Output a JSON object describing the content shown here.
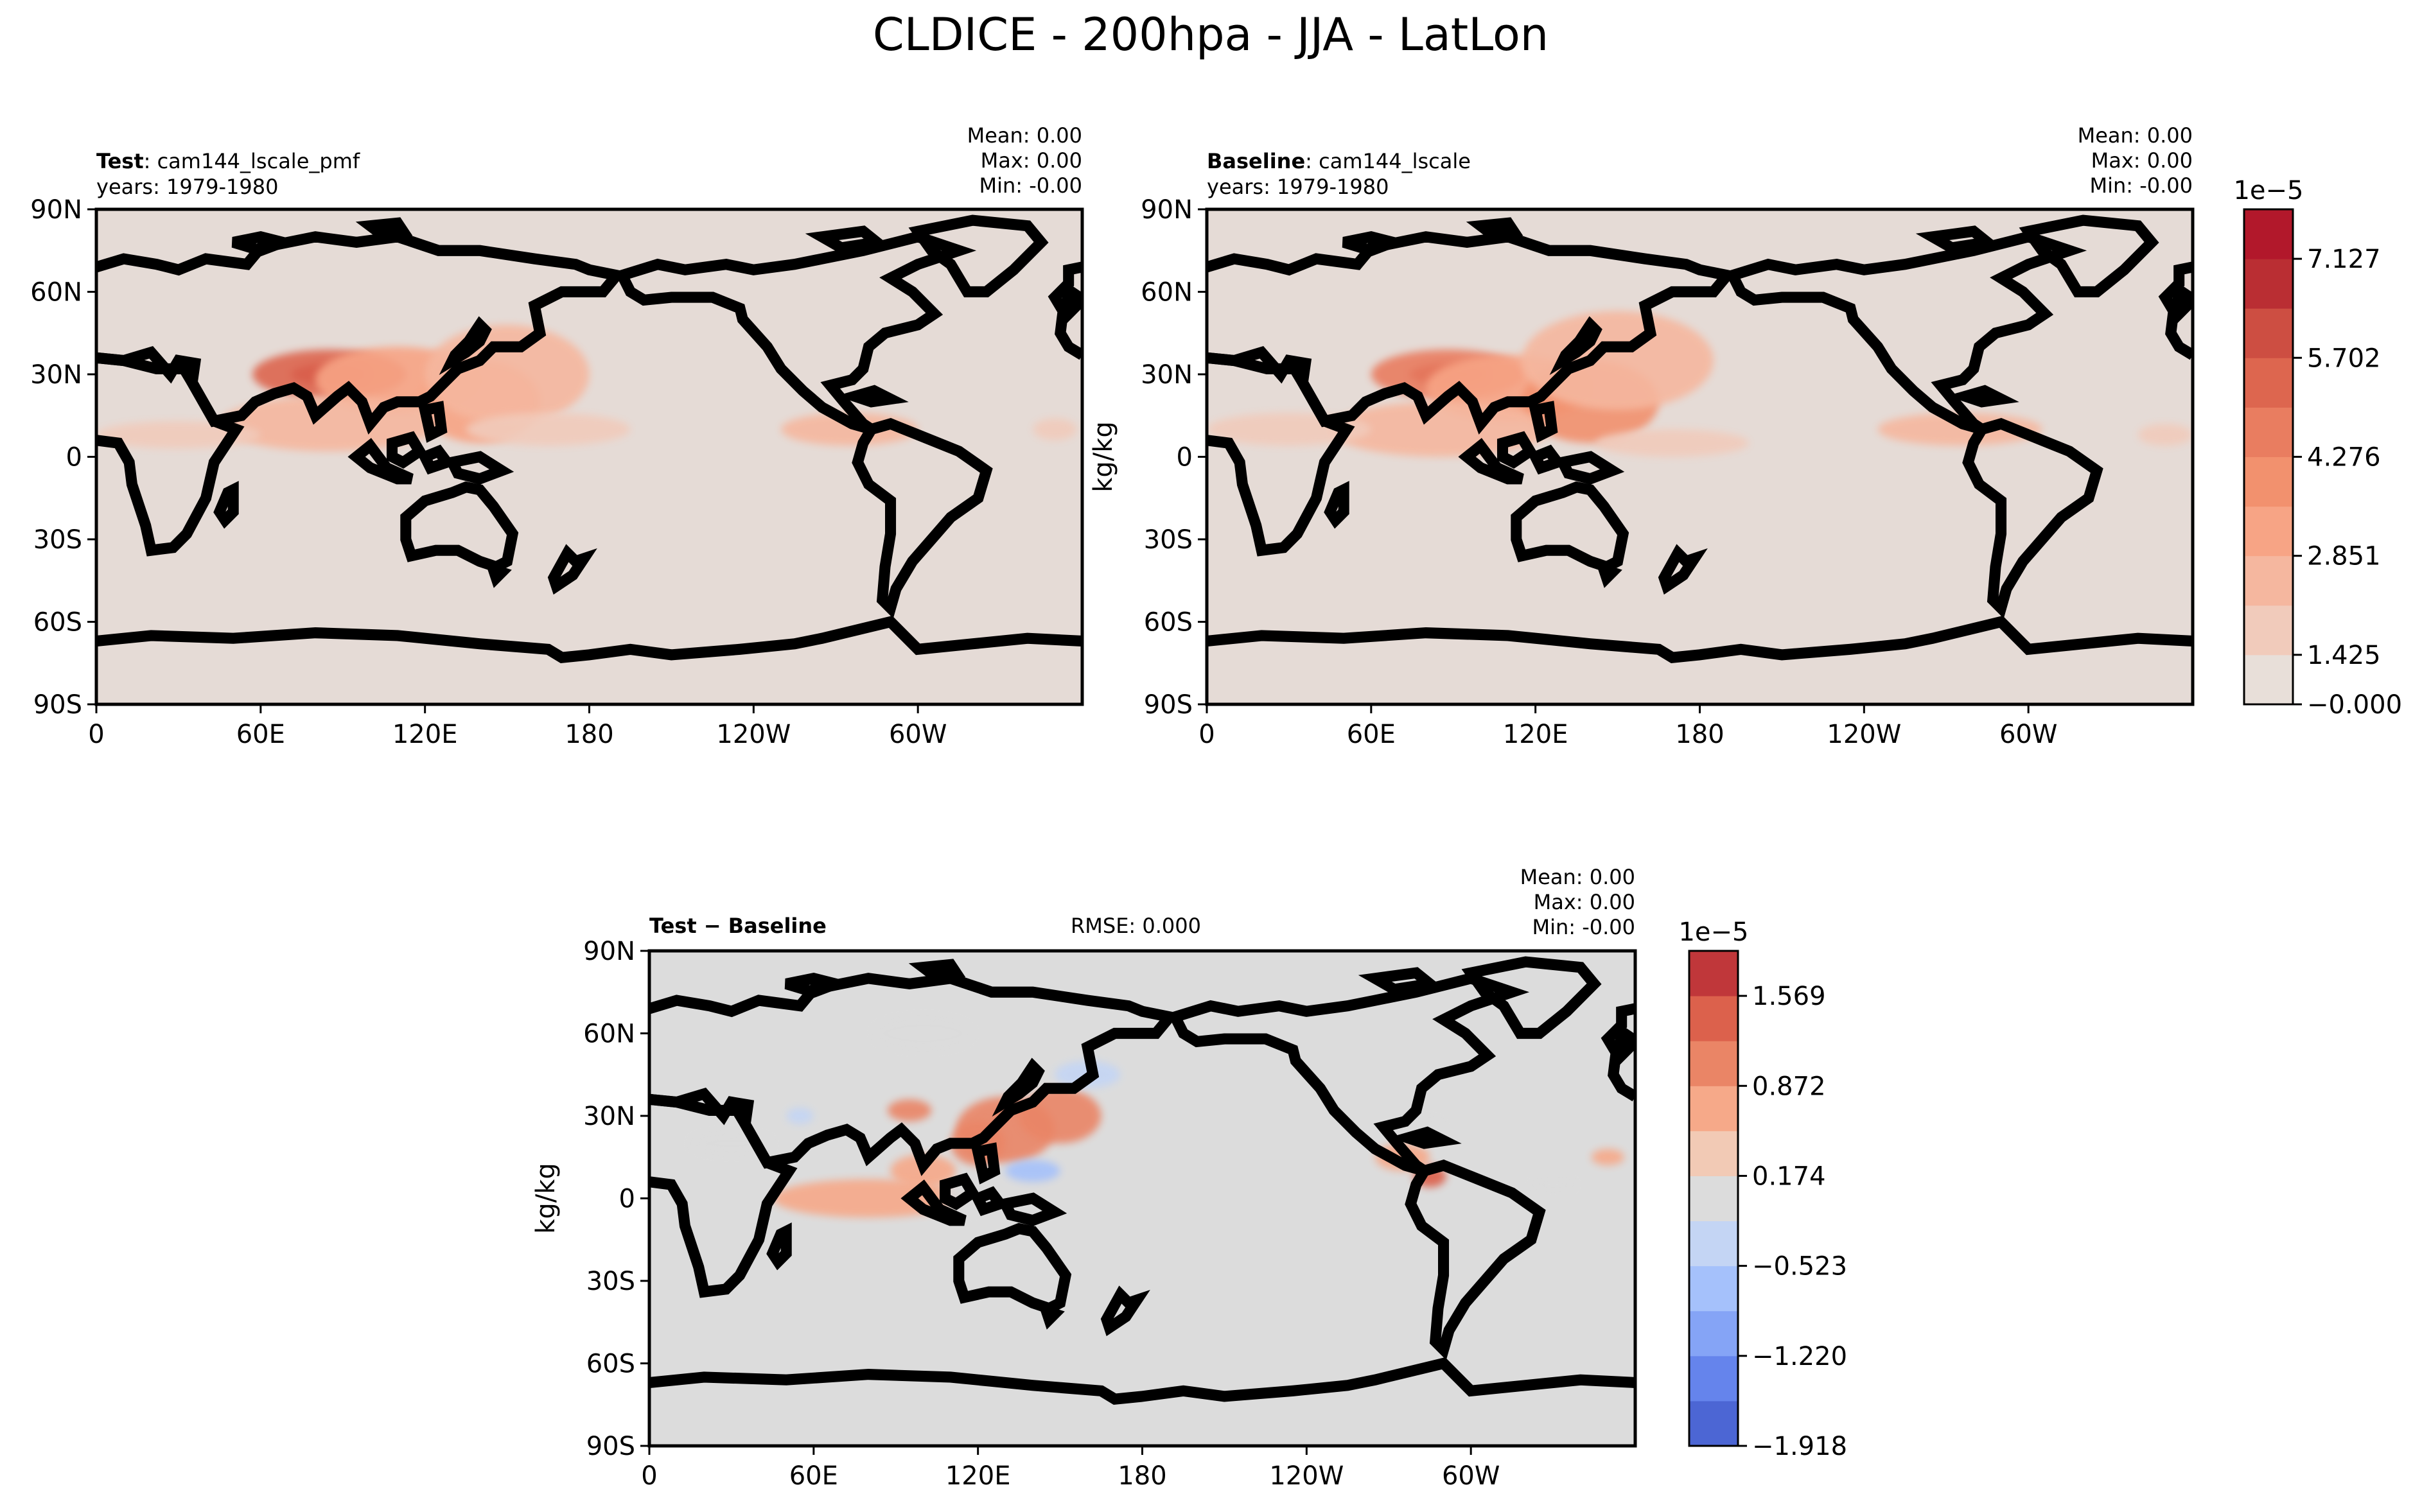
{
  "figure": {
    "title": "CLDICE - 200hpa - JJA - LatLon"
  },
  "chart_data": [
    {
      "type": "heatmap",
      "panel": "test",
      "label_bold": "Test",
      "label_rest": ": cam144_lscale_pmf",
      "years": "years: 1979-1980",
      "stats": [
        "Mean:  0.00",
        "Max:  0.00",
        "Min: -0.00"
      ],
      "ylabel": "",
      "x_ticks": [
        "0",
        "60E",
        "120E",
        "180",
        "120W",
        "60W"
      ],
      "y_ticks": [
        "90N",
        "60N",
        "30N",
        "0",
        "30S",
        "60S",
        "90S"
      ],
      "xlim": [
        0,
        360
      ],
      "ylim": [
        -90,
        90
      ],
      "features": [
        {
          "lon": 85,
          "lat": 30,
          "rx": 14,
          "ry": 4,
          "level": 9
        },
        {
          "lon": 85,
          "lat": 30,
          "rx": 28,
          "ry": 9,
          "level": 6
        },
        {
          "lon": 110,
          "lat": 28,
          "rx": 30,
          "ry": 12,
          "level": 3
        },
        {
          "lon": 140,
          "lat": 20,
          "rx": 22,
          "ry": 15,
          "level": 3
        },
        {
          "lon": 150,
          "lat": 30,
          "rx": 30,
          "ry": 18,
          "level": 2
        },
        {
          "lon": 85,
          "lat": 12,
          "rx": 40,
          "ry": 10,
          "level": 2
        },
        {
          "lon": 30,
          "lat": 8,
          "rx": 30,
          "ry": 5,
          "level": 1
        },
        {
          "lon": 165,
          "lat": 10,
          "rx": 30,
          "ry": 6,
          "level": 1
        },
        {
          "lon": 275,
          "lat": 10,
          "rx": 25,
          "ry": 6,
          "level": 2
        },
        {
          "lon": 350,
          "lat": 10,
          "rx": 8,
          "ry": 4,
          "level": 1
        }
      ]
    },
    {
      "type": "heatmap",
      "panel": "baseline",
      "label_bold": "Baseline",
      "label_rest": ": cam144_lscale",
      "years": "years: 1979-1980",
      "stats": [
        "Mean:  0.00",
        "Max:  0.00",
        "Min: -0.00"
      ],
      "ylabel": "kg/kg",
      "x_ticks": [
        "0",
        "60E",
        "120E",
        "180",
        "120W",
        "60W"
      ],
      "y_ticks": [
        "90N",
        "60N",
        "30N",
        "0",
        "30S",
        "60S",
        "90S"
      ],
      "xlim": [
        0,
        360
      ],
      "ylim": [
        -90,
        90
      ],
      "features": [
        {
          "lon": 88,
          "lat": 30,
          "rx": 14,
          "ry": 4,
          "level": 8
        },
        {
          "lon": 88,
          "lat": 30,
          "rx": 28,
          "ry": 9,
          "level": 5
        },
        {
          "lon": 110,
          "lat": 25,
          "rx": 30,
          "ry": 12,
          "level": 3
        },
        {
          "lon": 140,
          "lat": 20,
          "rx": 25,
          "ry": 15,
          "level": 4
        },
        {
          "lon": 150,
          "lat": 35,
          "rx": 35,
          "ry": 18,
          "level": 2
        },
        {
          "lon": 85,
          "lat": 10,
          "rx": 40,
          "ry": 10,
          "level": 2
        },
        {
          "lon": 30,
          "lat": 10,
          "rx": 30,
          "ry": 6,
          "level": 1
        },
        {
          "lon": 170,
          "lat": 5,
          "rx": 28,
          "ry": 5,
          "level": 1
        },
        {
          "lon": 275,
          "lat": 10,
          "rx": 30,
          "ry": 6,
          "level": 2
        },
        {
          "lon": 350,
          "lat": 8,
          "rx": 10,
          "ry": 4,
          "level": 1
        }
      ]
    },
    {
      "type": "heatmap",
      "panel": "difference",
      "label_bold": "Test − Baseline",
      "rmse": "RMSE: 0.000",
      "stats": [
        "Mean:  0.00",
        "Max:  0.00",
        "Min: -0.00"
      ],
      "ylabel": "kg/kg",
      "x_ticks": [
        "0",
        "60E",
        "120E",
        "180",
        "120W",
        "60W"
      ],
      "y_ticks": [
        "90N",
        "60N",
        "30N",
        "0",
        "30S",
        "60S",
        "90S"
      ],
      "xlim": [
        0,
        360
      ],
      "ylim": [
        -90,
        90
      ],
      "features": [
        {
          "lon": 130,
          "lat": 25,
          "rx": 18,
          "ry": 12,
          "level": 8
        },
        {
          "lon": 150,
          "lat": 30,
          "rx": 15,
          "ry": 10,
          "level": 8
        },
        {
          "lon": 120,
          "lat": 20,
          "rx": 10,
          "ry": 8,
          "level": 8
        },
        {
          "lon": 95,
          "lat": 32,
          "rx": 8,
          "ry": 4,
          "level": 8
        },
        {
          "lon": 100,
          "lat": 10,
          "rx": 12,
          "ry": 6,
          "level": 7
        },
        {
          "lon": 80,
          "lat": 0,
          "rx": 35,
          "ry": 7,
          "level": 7
        },
        {
          "lon": 285,
          "lat": 8,
          "rx": 6,
          "ry": 4,
          "level": 9
        },
        {
          "lon": 275,
          "lat": 15,
          "rx": 10,
          "ry": 5,
          "level": 7
        },
        {
          "lon": 350,
          "lat": 15,
          "rx": 6,
          "ry": 3,
          "level": 7
        },
        {
          "lon": 100,
          "lat": 60,
          "rx": 18,
          "ry": 6,
          "level": 5
        },
        {
          "lon": 160,
          "lat": 45,
          "rx": 12,
          "ry": 5,
          "level": 4
        },
        {
          "lon": 30,
          "lat": 20,
          "rx": 15,
          "ry": 4,
          "level": 5
        },
        {
          "lon": 140,
          "lat": 10,
          "rx": 10,
          "ry": 4,
          "level": 3
        },
        {
          "lon": 115,
          "lat": 0,
          "rx": 8,
          "ry": 6,
          "level": 5
        },
        {
          "lon": 55,
          "lat": 30,
          "rx": 5,
          "ry": 3,
          "level": 4
        },
        {
          "lon": 285,
          "lat": 25,
          "rx": 5,
          "ry": 4,
          "level": 5
        },
        {
          "lon": 330,
          "lat": 5,
          "rx": 8,
          "ry": 2,
          "level": 5
        }
      ]
    }
  ],
  "colorbars": [
    {
      "exponent": "1e−5",
      "labels": [
        "7.127",
        "5.702",
        "4.276",
        "2.851",
        "1.425",
        "−0.000"
      ],
      "colors": [
        "#e8dfd9",
        "#f1cbbb",
        "#f5b79f",
        "#f7a485",
        "#f2916e",
        "#e97d60",
        "#dd664f",
        "#cd4e42",
        "#ba2e33",
        "#b2182b"
      ]
    },
    {
      "exponent": "1e−5",
      "labels": [
        "1.569",
        "0.872",
        "0.174",
        "−0.523",
        "−1.220",
        "−1.918"
      ],
      "colors": [
        "#4c66d4",
        "#6584ec",
        "#85a4f6",
        "#a5c1fb",
        "#c4d5f4",
        "#dcdcdc",
        "#f2cab5",
        "#f6a989",
        "#ea8566",
        "#dc614c",
        "#c0373a"
      ]
    }
  ],
  "colors": {
    "land_line": "#000000",
    "zero_fill_top": "#e5dbd6",
    "zero_fill_diff": "#dcdcdc"
  }
}
